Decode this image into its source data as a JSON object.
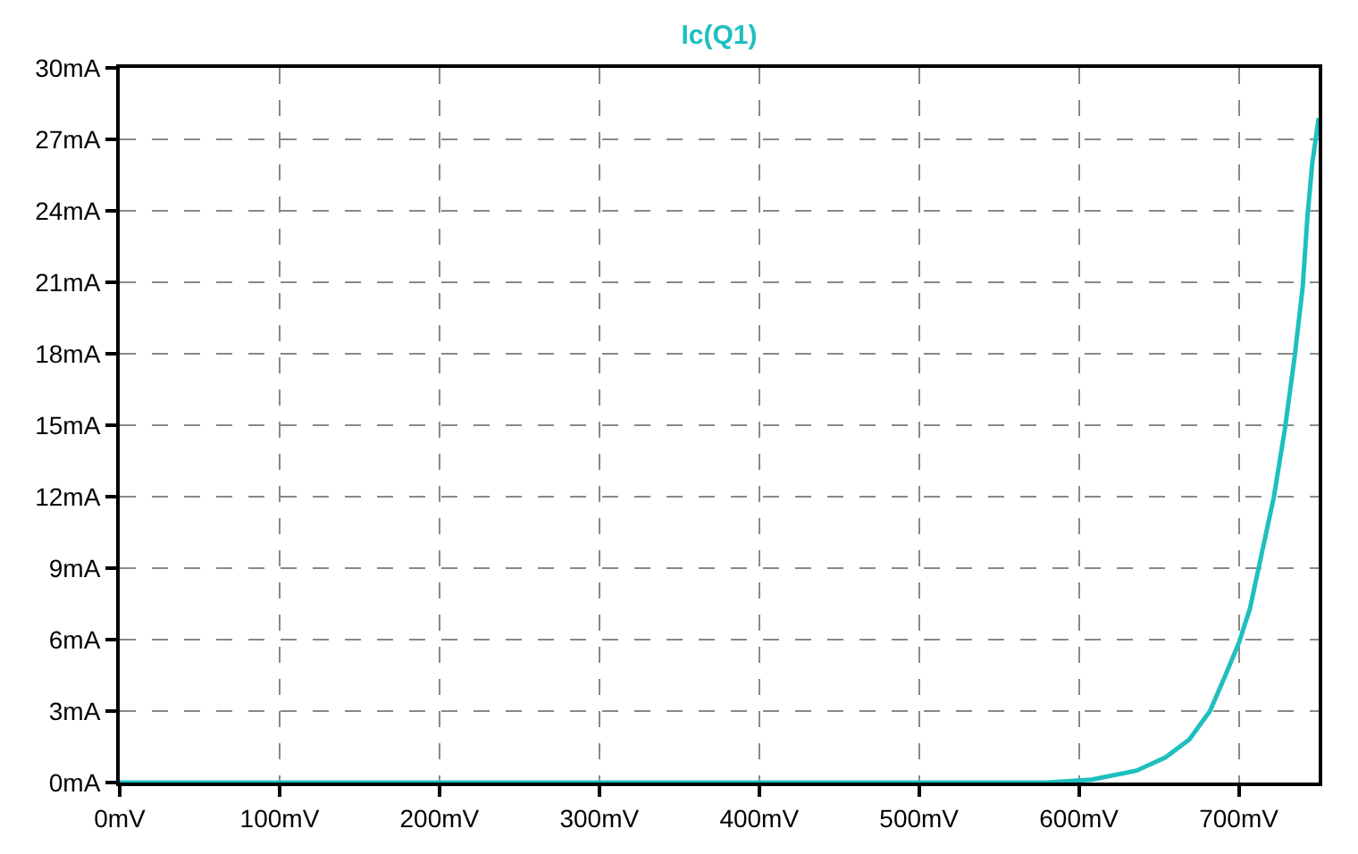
{
  "chart_data": {
    "type": "line",
    "title": "Ic(Q1)",
    "x": [
      0,
      100,
      200,
      300,
      400,
      500,
      580,
      608,
      636,
      654,
      669,
      682,
      691,
      700,
      707,
      714,
      722,
      729,
      735,
      740,
      743,
      746,
      750
    ],
    "series": [
      {
        "color": "#1fbfbf",
        "values": [
          0,
          0,
          0,
          0,
          0,
          0,
          0,
          0.12,
          0.5,
          1.05,
          1.8,
          3.0,
          4.4,
          5.85,
          7.3,
          9.5,
          12.0,
          14.9,
          17.9,
          20.8,
          23.8,
          26.0,
          27.9
        ]
      }
    ],
    "xlim": [
      0,
      750
    ],
    "ylim": [
      0,
      30
    ],
    "xticks": [
      {
        "value": 0,
        "label": "0mV"
      },
      {
        "value": 100,
        "label": "100mV"
      },
      {
        "value": 200,
        "label": "200mV"
      },
      {
        "value": 300,
        "label": "300mV"
      },
      {
        "value": 400,
        "label": "400mV"
      },
      {
        "value": 500,
        "label": "500mV"
      },
      {
        "value": 600,
        "label": "600mV"
      },
      {
        "value": 700,
        "label": "700mV"
      }
    ],
    "yticks": [
      {
        "value": 0,
        "label": "0mA"
      },
      {
        "value": 3,
        "label": "3mA"
      },
      {
        "value": 6,
        "label": "6mA"
      },
      {
        "value": 9,
        "label": "9mA"
      },
      {
        "value": 12,
        "label": "12mA"
      },
      {
        "value": 15,
        "label": "15mA"
      },
      {
        "value": 18,
        "label": "18mA"
      },
      {
        "value": 21,
        "label": "21mA"
      },
      {
        "value": 24,
        "label": "24mA"
      },
      {
        "value": 27,
        "label": "27mA"
      },
      {
        "value": 30,
        "label": "30mA"
      }
    ],
    "grid": true,
    "legend": false,
    "marker": "none",
    "line_style": "solid"
  }
}
